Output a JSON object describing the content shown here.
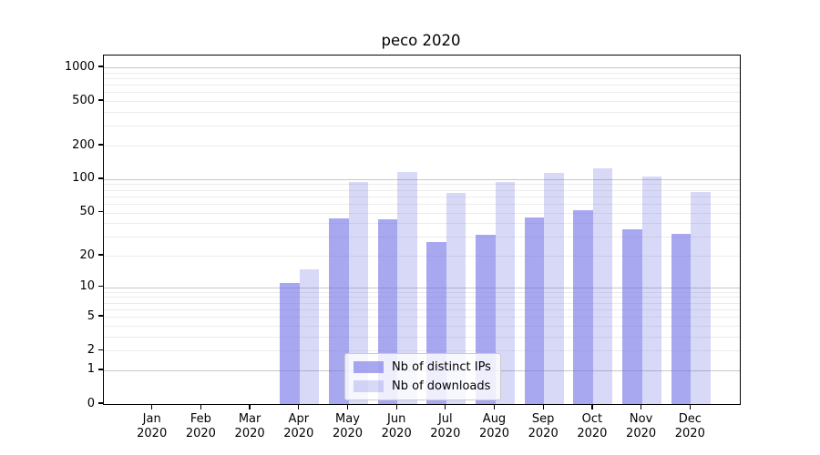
{
  "title": "peco 2020",
  "chart_data": {
    "type": "bar",
    "title": "peco 2020",
    "categories": [
      "Jan 2020",
      "Feb 2020",
      "Mar 2020",
      "Apr 2020",
      "May 2020",
      "Jun 2020",
      "Jul 2020",
      "Aug 2020",
      "Sep 2020",
      "Oct 2020",
      "Nov 2020",
      "Dec 2020"
    ],
    "series": [
      {
        "name": "Nb of distinct IPs",
        "color": "rgba(110,110,230,0.6)",
        "values": [
          0,
          0,
          0,
          11,
          44,
          43,
          27,
          31,
          45,
          52,
          35,
          32
        ]
      },
      {
        "name": "Nb of downloads",
        "color": "rgba(99,99,223,0.25)",
        "values": [
          0,
          0,
          0,
          15,
          95,
          117,
          75,
          95,
          113,
          125,
          105,
          77
        ]
      }
    ],
    "xlabel": "",
    "ylabel": "",
    "yscale": "log1p",
    "yticks": [
      0,
      1,
      2,
      5,
      10,
      20,
      50,
      100,
      200,
      500,
      1000
    ],
    "minor_gridlines": [
      2,
      3,
      4,
      5,
      6,
      7,
      8,
      9,
      20,
      30,
      40,
      50,
      60,
      70,
      80,
      90,
      200,
      300,
      400,
      500,
      600,
      700,
      800,
      900
    ],
    "major_gridlines": [
      1,
      10,
      100,
      1000
    ],
    "ylim": [
      0,
      1276
    ],
    "grid": true,
    "legend_position": "lower center",
    "background": "#ffffff"
  }
}
